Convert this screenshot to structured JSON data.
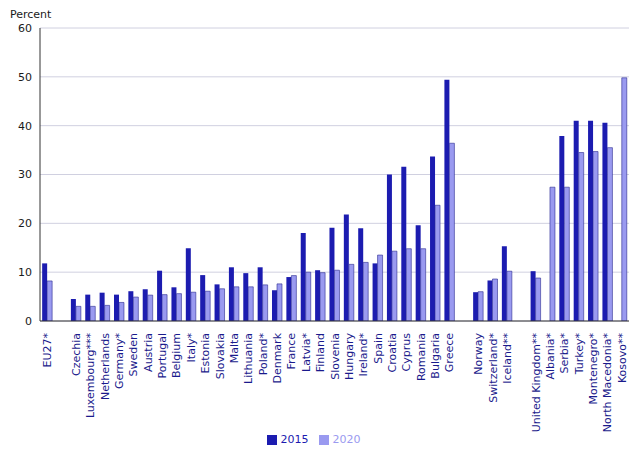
{
  "chart_data": {
    "type": "bar",
    "y_label": "Percent",
    "categories": [
      "EU27*",
      null,
      "Czechia",
      "Luxembourg***",
      "Netherlands",
      "Germany*",
      "Sweden",
      "Austria",
      "Portugal",
      "Belgium",
      "Italy*",
      "Estonia",
      "Slovakia",
      "Malta",
      "Lithuania",
      "Poland*",
      "Denmark",
      "France",
      "Latvia*",
      "Finland",
      "Slovenia",
      "Hungary",
      "Ireland*",
      "Spain",
      "Croatia",
      "Cyprus",
      "Romania",
      "Bulgaria",
      "Greece",
      null,
      "Norway",
      "Switzerland*",
      "Iceland**",
      null,
      "United Kingdom**",
      "Albania*",
      "Serbia*",
      "Turkey*",
      "Montenegro*",
      "North Macedonia*",
      "Kosovo**"
    ],
    "series": [
      {
        "name": "2015",
        "color": "#1c1cb0",
        "values": [
          11.8,
          null,
          4.5,
          5.4,
          5.8,
          5.4,
          6.1,
          6.5,
          10.3,
          6.9,
          14.9,
          9.4,
          7.5,
          11.0,
          9.8,
          11.0,
          6.3,
          9.0,
          18.0,
          10.4,
          19.1,
          21.8,
          19.0,
          11.8,
          30.0,
          31.6,
          19.6,
          33.7,
          49.4,
          null,
          5.9,
          8.3,
          15.3,
          null,
          10.2,
          null,
          37.9,
          41.0,
          41.0,
          40.6,
          null
        ]
      },
      {
        "name": "2020",
        "color": "#9a9af0",
        "values": [
          8.2,
          null,
          3.0,
          3.0,
          3.2,
          3.8,
          4.9,
          5.3,
          5.4,
          5.6,
          5.9,
          6.1,
          6.6,
          7.0,
          7.0,
          7.4,
          7.6,
          9.3,
          10.0,
          9.9,
          10.4,
          11.6,
          12.0,
          13.5,
          14.3,
          14.8,
          14.8,
          23.7,
          36.4,
          null,
          6.0,
          8.6,
          10.2,
          null,
          8.8,
          27.4,
          27.4,
          34.5,
          34.7,
          35.5,
          49.8
        ]
      }
    ],
    "ylim": [
      0,
      60
    ],
    "yticks": [
      0,
      10,
      20,
      30,
      40,
      50,
      60
    ],
    "grid": true,
    "legend": "bottom"
  }
}
